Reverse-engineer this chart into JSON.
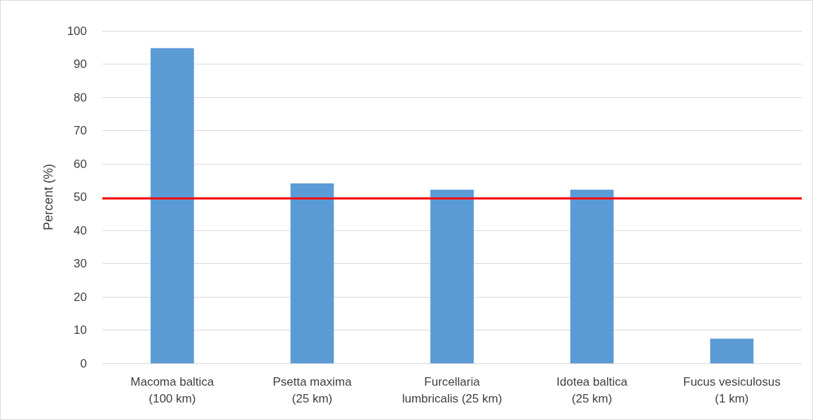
{
  "chart_data": {
    "type": "bar",
    "ylabel": "Percent (%)",
    "categories": [
      "Macoma baltica\n(100 km)",
      "Psetta maxima\n(25 km)",
      "Furcellaria\nlumbricalis (25 km)",
      "Idotea baltica\n(25 km)",
      "Fucus vesiculosus\n(1 km)"
    ],
    "values": [
      94.8,
      54.1,
      52.2,
      52.2,
      7.4
    ],
    "color": "#5b9bd5",
    "ylim": [
      0,
      100
    ],
    "yticks": [
      0,
      10,
      20,
      30,
      40,
      50,
      60,
      70,
      80,
      90,
      100
    ],
    "grid": "y",
    "ref_lines": [
      {
        "axis": "y",
        "value": 49.6,
        "color": "#ff0000",
        "line_style": "solid"
      }
    ]
  }
}
